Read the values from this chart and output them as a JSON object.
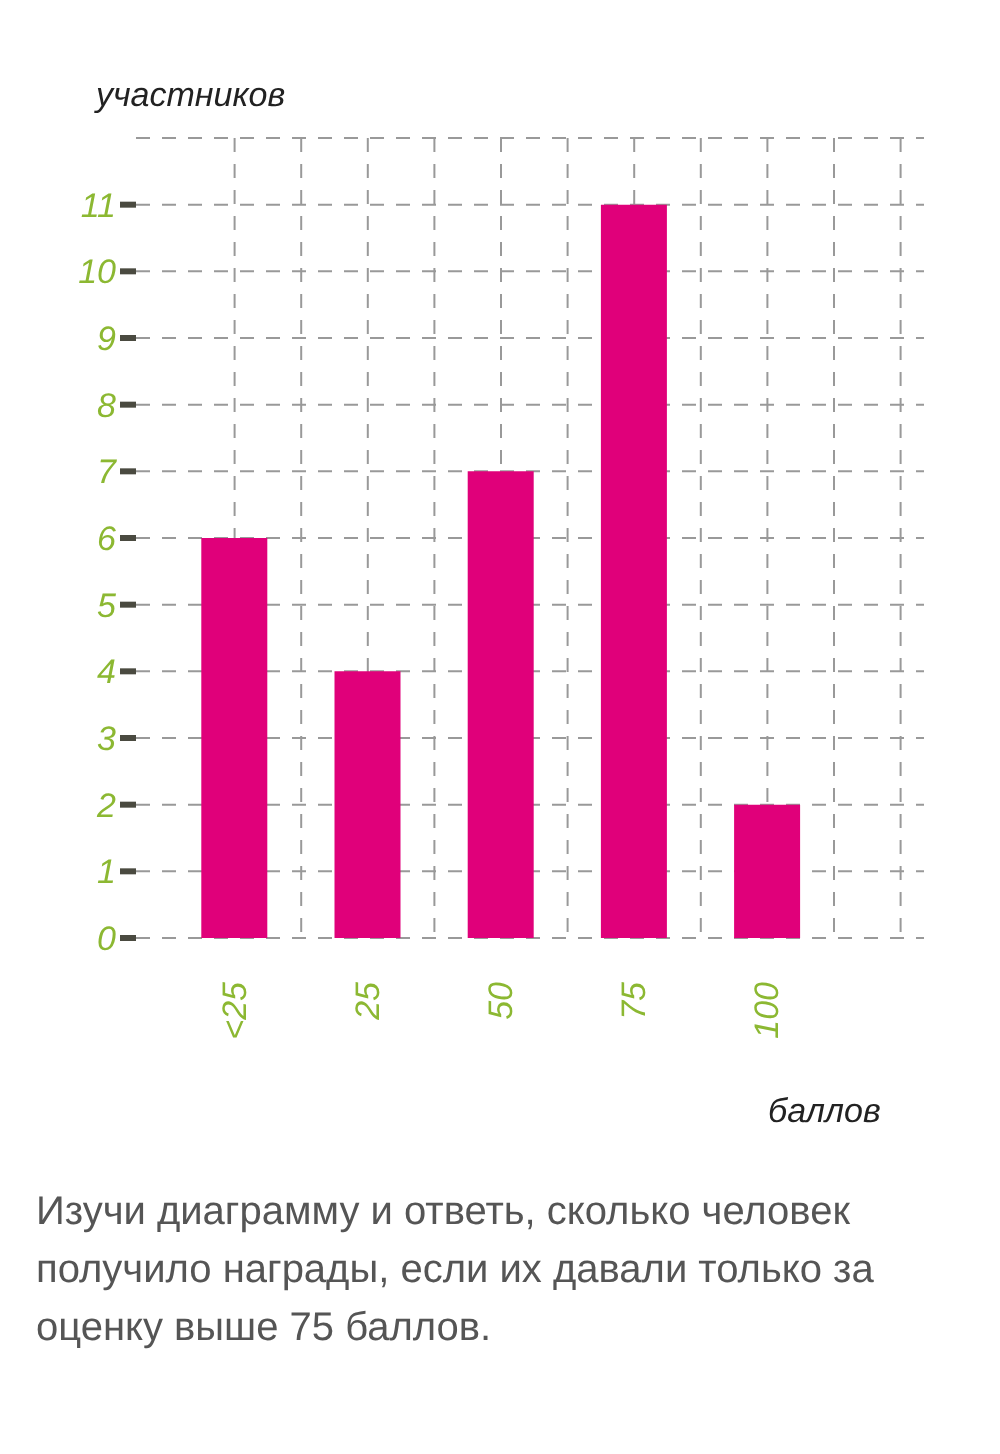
{
  "chart_data": {
    "type": "bar",
    "ylabel": "участников",
    "xlabel": "баллов",
    "categories": [
      "<25",
      "25",
      "50",
      "75",
      "100"
    ],
    "values": [
      6,
      4,
      7,
      11,
      2
    ],
    "color": "#e0007a",
    "ylim": [
      0,
      12
    ],
    "yticks": [
      0,
      1,
      2,
      3,
      4,
      5,
      6,
      7,
      8,
      9,
      10,
      11
    ],
    "grid": true,
    "annotations": [
      "Изучи диаграмму и ответь, сколько человек получило награды, если их давали только за оценку выше 75 баллов."
    ]
  }
}
